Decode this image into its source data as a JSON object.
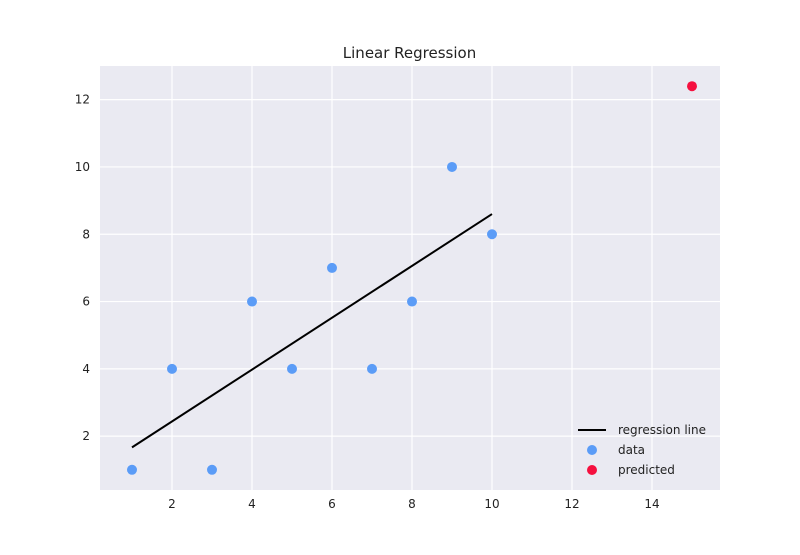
{
  "chart_data": {
    "type": "scatter",
    "title": "Linear Regression",
    "xlabel": "",
    "ylabel": "",
    "xlim": [
      0.2,
      15.7
    ],
    "ylim": [
      0.4,
      13.0
    ],
    "x_ticks": [
      2,
      4,
      6,
      8,
      10,
      12,
      14
    ],
    "y_ticks": [
      2,
      4,
      6,
      8,
      10,
      12
    ],
    "grid": true,
    "legend_position": "lower-right",
    "series": [
      {
        "name": "regression line",
        "kind": "line",
        "color": "#000000",
        "x": [
          1,
          10
        ],
        "y": [
          1.667,
          8.6
        ]
      },
      {
        "name": "data",
        "kind": "scatter",
        "color": "#5b9cf7",
        "x": [
          1,
          2,
          3,
          4,
          5,
          6,
          7,
          8,
          9,
          10
        ],
        "y": [
          1,
          4,
          1,
          6,
          4,
          7,
          4,
          6,
          10,
          8
        ]
      },
      {
        "name": "predicted",
        "kind": "scatter",
        "color": "#f5103f",
        "x": [
          15
        ],
        "y": [
          12.4
        ]
      }
    ],
    "background_color": "#eaeaf2",
    "grid_color": "#ffffff"
  }
}
